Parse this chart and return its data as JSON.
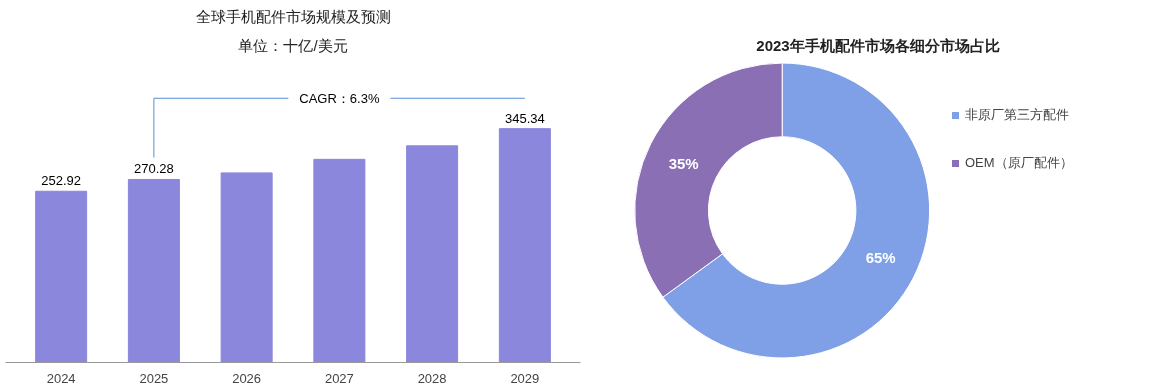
{
  "chart_data": [
    {
      "type": "bar",
      "title": "全球手机配件市场规模及预测",
      "subtitle": "单位：十亿/美元",
      "categories": [
        "2024",
        "2025",
        "2026",
        "2027",
        "2028",
        "2029"
      ],
      "values": [
        252.92,
        270.28,
        280,
        300,
        320,
        345.34
      ],
      "value_labels": [
        "252.92",
        "270.28",
        null,
        null,
        null,
        "345.34"
      ],
      "color": "#8a87dc",
      "annotations": [
        "CAGR：6.3%"
      ],
      "grid": false,
      "tick_labels": "x"
    },
    {
      "type": "donut",
      "title": "2023年手机配件市场各细分市场占比",
      "categories": [
        "非原厂第三方配件",
        "OEM（原厂配件）"
      ],
      "values": [
        65,
        35
      ],
      "colors": [
        "#7f9fe6",
        "#8b6fb5"
      ],
      "value_labels": [
        "65%",
        "35%"
      ],
      "legend": "right"
    }
  ]
}
